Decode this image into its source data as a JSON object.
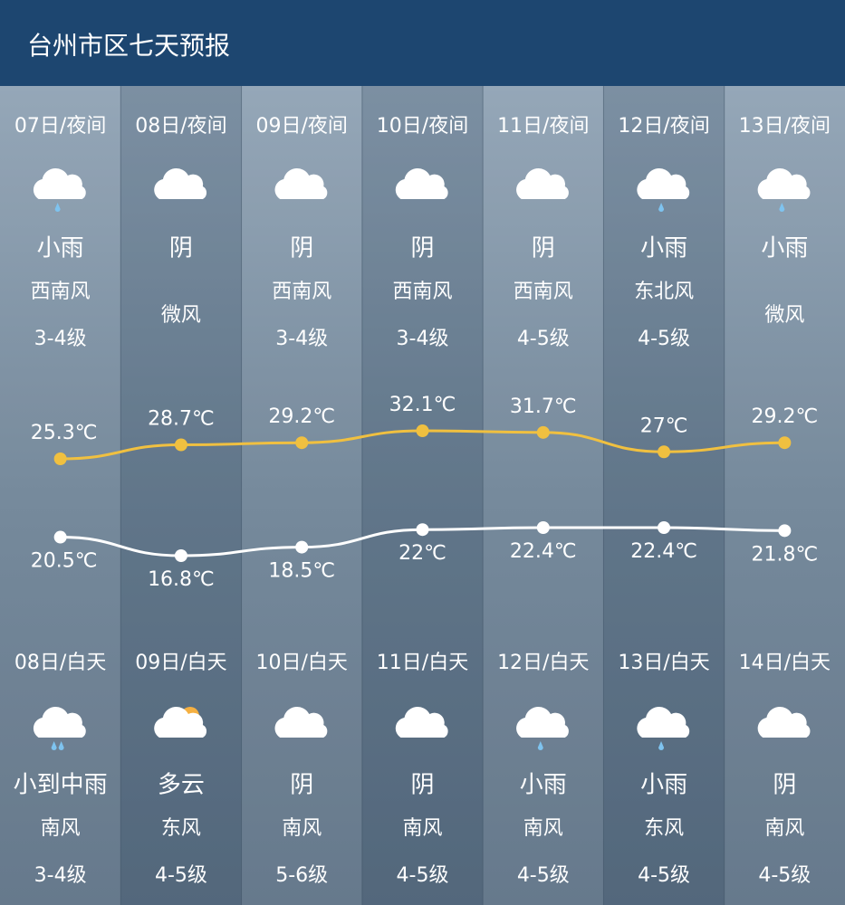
{
  "header": {
    "title": "台州市区七天预报"
  },
  "nights": [
    {
      "date": "07日/夜间",
      "weather": "小雨",
      "wind": "西南风",
      "level": "3-4级",
      "high": {
        "value": 25.3,
        "label": "25.3℃"
      },
      "low": {
        "value": 20.5,
        "label": "20.5℃"
      }
    },
    {
      "date": "08日/夜间",
      "weather": "阴",
      "wind": "微风",
      "high": {
        "value": 28.7,
        "label": "28.7℃"
      },
      "low": {
        "value": 16.8,
        "label": "16.8℃"
      }
    },
    {
      "date": "09日/夜间",
      "weather": "阴",
      "wind": "西南风",
      "level": "3-4级",
      "high": {
        "value": 29.2,
        "label": "29.2℃"
      },
      "low": {
        "value": 18.5,
        "label": "18.5℃"
      }
    },
    {
      "date": "10日/夜间",
      "weather": "阴",
      "wind": "西南风",
      "level": "3-4级",
      "high": {
        "value": 32.1,
        "label": "32.1℃"
      },
      "low": {
        "value": 22,
        "label": "22℃"
      }
    },
    {
      "date": "11日/夜间",
      "weather": "阴",
      "wind": "西南风",
      "level": "4-5级",
      "high": {
        "value": 31.7,
        "label": "31.7℃"
      },
      "low": {
        "value": 22.4,
        "label": "22.4℃"
      }
    },
    {
      "date": "12日/夜间",
      "weather": "小雨",
      "wind": "东北风",
      "level": "4-5级",
      "high": {
        "value": 27,
        "label": "27℃"
      },
      "low": {
        "value": 22.4,
        "label": "22.4℃"
      }
    },
    {
      "date": "13日/夜间",
      "weather": "小雨",
      "wind": "微风",
      "high": {
        "value": 29.2,
        "label": "29.2℃"
      },
      "low": {
        "value": 21.8,
        "label": "21.8℃"
      }
    }
  ],
  "days": [
    {
      "date": "08日/白天",
      "weather": "小到中雨",
      "wind": "南风",
      "level": "3-4级"
    },
    {
      "date": "09日/白天",
      "weather": "多云",
      "wind": "东风",
      "level": "4-5级"
    },
    {
      "date": "10日/白天",
      "weather": "阴",
      "wind": "南风",
      "level": "5-6级"
    },
    {
      "date": "11日/白天",
      "weather": "阴",
      "wind": "南风",
      "level": "4-5级"
    },
    {
      "date": "12日/白天",
      "weather": "小雨",
      "wind": "南风",
      "level": "4-5级"
    },
    {
      "date": "13日/白天",
      "weather": "小雨",
      "wind": "东风",
      "level": "4-5级"
    },
    {
      "date": "14日/白天",
      "weather": "阴",
      "wind": "南风",
      "level": "4-5级"
    }
  ]
}
